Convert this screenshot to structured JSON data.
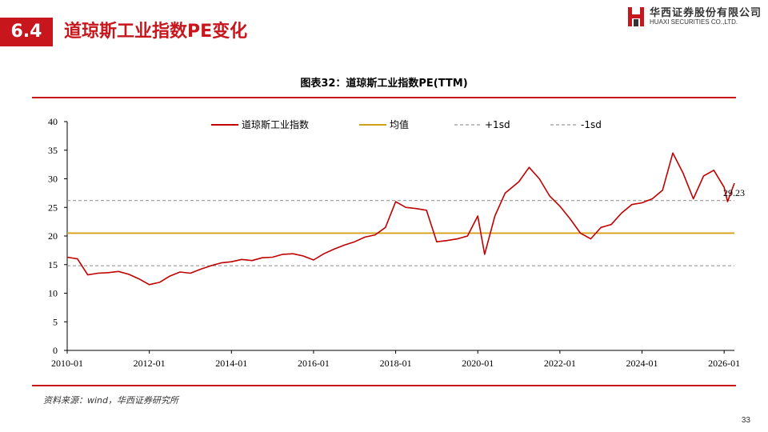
{
  "header": {
    "section_number": "6.4",
    "section_title": "道琼斯工业指数PE变化",
    "logo_cn": "华西证券股份有限公司",
    "logo_en": "HUAXI SECURITIES CO.,LTD.",
    "brand_color": "#c8161d"
  },
  "footer": {
    "source": "资料来源：wind，华西证券研究所",
    "page_number": "33"
  },
  "chart_data": {
    "type": "line",
    "title": "图表32：道琼斯工业指数PE(TTM)",
    "xlabel": "",
    "ylabel": "",
    "x_range": [
      "2010-01",
      "2026-04"
    ],
    "ylim": [
      0,
      40
    ],
    "yticks": [
      0,
      5,
      10,
      15,
      20,
      25,
      30,
      35,
      40
    ],
    "xticks": [
      "2010-01",
      "2012-01",
      "2014-01",
      "2016-01",
      "2018-01",
      "2020-01",
      "2022-01",
      "2024-01",
      "2026-01"
    ],
    "grid": false,
    "legend_position": "top",
    "series": [
      {
        "name": "道琼斯工业指数",
        "color": "#c00000",
        "x": [
          "2010-01",
          "2010-04",
          "2010-07",
          "2010-10",
          "2011-01",
          "2011-04",
          "2011-07",
          "2011-10",
          "2012-01",
          "2012-04",
          "2012-07",
          "2012-10",
          "2013-01",
          "2013-04",
          "2013-07",
          "2013-10",
          "2014-01",
          "2014-04",
          "2014-07",
          "2014-10",
          "2015-01",
          "2015-04",
          "2015-07",
          "2015-10",
          "2016-01",
          "2016-04",
          "2016-07",
          "2016-10",
          "2017-01",
          "2017-04",
          "2017-07",
          "2017-10",
          "2018-01",
          "2018-04",
          "2018-07",
          "2018-10",
          "2019-01",
          "2019-04",
          "2019-07",
          "2019-10",
          "2020-01",
          "2020-03",
          "2020-06",
          "2020-09",
          "2021-01",
          "2021-04",
          "2021-07",
          "2021-10",
          "2022-01",
          "2022-04",
          "2022-07",
          "2022-10",
          "2023-01",
          "2023-04",
          "2023-07",
          "2023-10",
          "2024-01",
          "2024-04",
          "2024-07",
          "2024-10",
          "2025-01",
          "2025-04",
          "2025-07",
          "2025-10",
          "2026-01",
          "2026-02",
          "2026-04"
        ],
        "values": [
          16.3,
          16.0,
          13.2,
          13.5,
          13.6,
          13.8,
          13.3,
          12.5,
          11.5,
          11.9,
          13.0,
          13.7,
          13.5,
          14.2,
          14.8,
          15.3,
          15.5,
          15.9,
          15.7,
          16.2,
          16.3,
          16.8,
          16.9,
          16.5,
          15.8,
          16.9,
          17.7,
          18.4,
          19.0,
          19.8,
          20.2,
          21.5,
          26.0,
          25.0,
          24.8,
          24.5,
          19.0,
          19.2,
          19.5,
          20.0,
          23.5,
          16.8,
          23.5,
          27.5,
          29.5,
          32.0,
          30.0,
          27.0,
          25.2,
          23.0,
          20.5,
          19.5,
          21.5,
          22.0,
          24.0,
          25.5,
          25.8,
          26.5,
          28.0,
          34.5,
          31.0,
          26.5,
          30.5,
          31.5,
          28.5,
          26.0,
          29.23
        ]
      },
      {
        "name": "均值",
        "color": "#d4a017",
        "value": 20.5
      },
      {
        "name": "+1sd",
        "color": "#999999",
        "value": 26.2
      },
      {
        "name": "-1sd",
        "color": "#999999",
        "value": 14.8
      }
    ],
    "annotations": [
      {
        "text": "29.23",
        "x": "2026-04",
        "y": 29.23
      }
    ]
  }
}
